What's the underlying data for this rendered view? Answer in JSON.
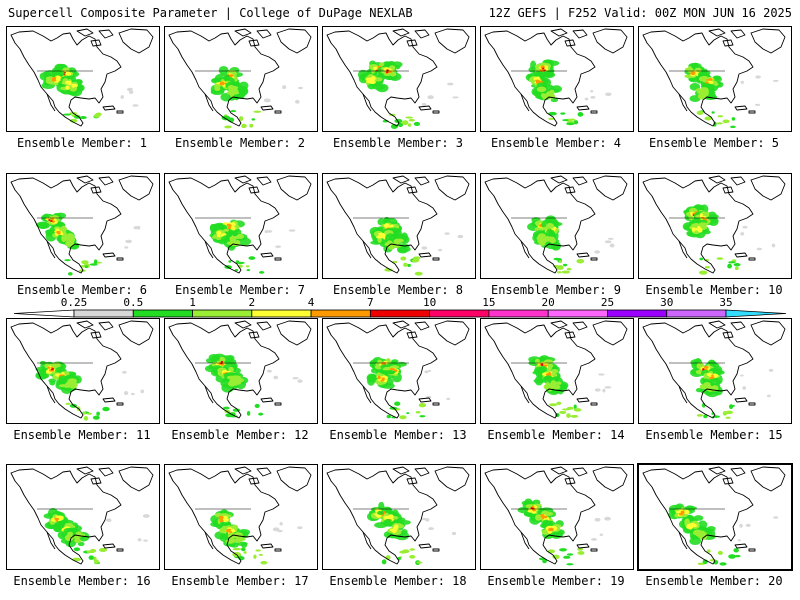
{
  "header": {
    "left": "Supercell Composite Parameter | College of DuPage NEXLAB",
    "right": "12Z GEFS | F252 Valid: 00Z MON JUN 16 2025"
  },
  "legend": {
    "ticks": [
      "0.25",
      "0.5",
      "1",
      "2",
      "4",
      "7",
      "10",
      "15",
      "20",
      "25",
      "30",
      "35"
    ],
    "colors": [
      "#d8d8d8",
      "#22dd22",
      "#99ee33",
      "#ffff33",
      "#ff9900",
      "#ee0000",
      "#ff0066",
      "#ff33cc",
      "#ff66ff",
      "#9900ff",
      "#cc66ff",
      "#33ddff"
    ]
  },
  "panels": [
    {
      "label": "Ensemble Member: 1",
      "highlight": false
    },
    {
      "label": "Ensemble Member: 2",
      "highlight": false
    },
    {
      "label": "Ensemble Member: 3",
      "highlight": false
    },
    {
      "label": "Ensemble Member: 4",
      "highlight": false
    },
    {
      "label": "Ensemble Member: 5",
      "highlight": false
    },
    {
      "label": "Ensemble Member: 6",
      "highlight": false
    },
    {
      "label": "Ensemble Member: 7",
      "highlight": false
    },
    {
      "label": "Ensemble Member: 8",
      "highlight": false
    },
    {
      "label": "Ensemble Member: 9",
      "highlight": false
    },
    {
      "label": "Ensemble Member: 10",
      "highlight": false
    },
    {
      "label": "Ensemble Member: 11",
      "highlight": false
    },
    {
      "label": "Ensemble Member: 12",
      "highlight": false
    },
    {
      "label": "Ensemble Member: 13",
      "highlight": false
    },
    {
      "label": "Ensemble Member: 14",
      "highlight": false
    },
    {
      "label": "Ensemble Member: 15",
      "highlight": false
    },
    {
      "label": "Ensemble Member: 16",
      "highlight": false
    },
    {
      "label": "Ensemble Member: 17",
      "highlight": false
    },
    {
      "label": "Ensemble Member: 18",
      "highlight": false
    },
    {
      "label": "Ensemble Member: 19",
      "highlight": false
    },
    {
      "label": "Ensemble Member: 20",
      "highlight": true
    }
  ]
}
